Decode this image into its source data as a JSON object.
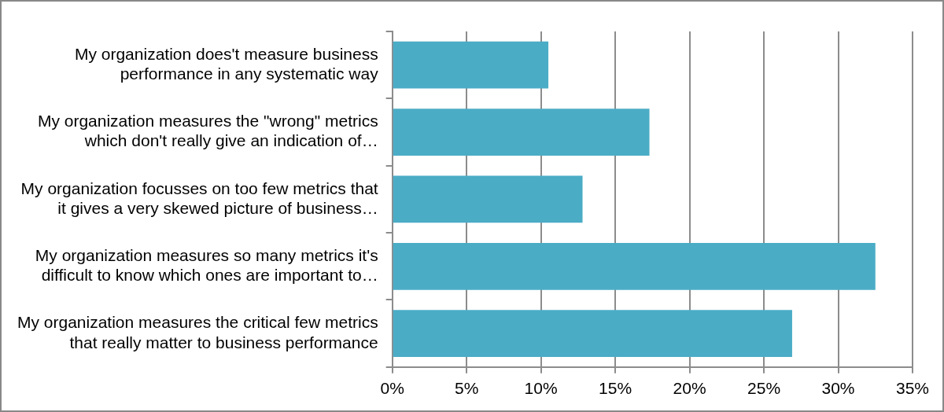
{
  "chart_data": {
    "type": "bar",
    "orientation": "horizontal",
    "categories": [
      "My organization does't measure business\nperformance in any systematic way",
      "My organization measures the \"wrong\" metrics\nwhich don't really give an indication of…",
      "My organization focusses on too few metrics that\nit gives a very skewed picture of business…",
      "My organization measures so many metrics it's\ndifficult to know which ones are important to…",
      "My organization measures the critical few metrics\nthat really matter to business performance"
    ],
    "values": [
      10.5,
      17.3,
      12.8,
      32.5,
      26.9
    ],
    "color": "#4bacc6",
    "xlim": [
      0,
      35
    ],
    "xticks": [
      {
        "value": 0,
        "label": "0%"
      },
      {
        "value": 5,
        "label": "5%"
      },
      {
        "value": 10,
        "label": "10%"
      },
      {
        "value": 15,
        "label": "15%"
      },
      {
        "value": 20,
        "label": "20%"
      },
      {
        "value": 25,
        "label": "25%"
      },
      {
        "value": 30,
        "label": "30%"
      },
      {
        "value": 35,
        "label": "35%"
      }
    ],
    "grid": "x",
    "legend": false
  }
}
